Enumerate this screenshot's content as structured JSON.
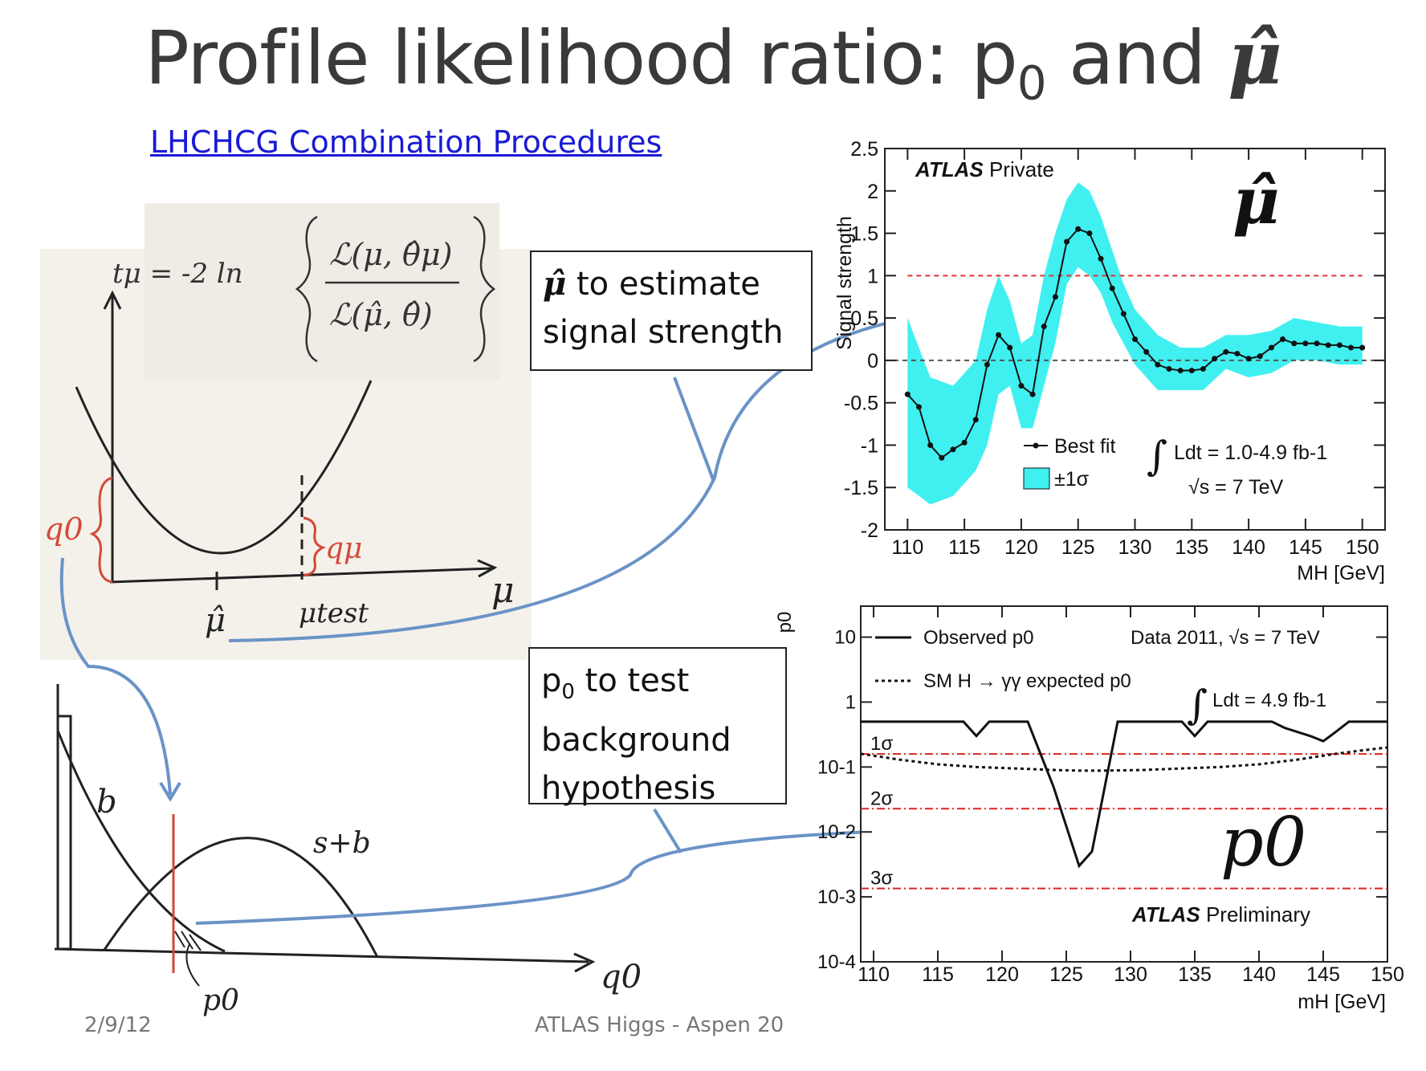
{
  "slide": {
    "title_prefix": "Profile likelihood ratio: p",
    "title_sub": "0",
    "title_mid": " and ",
    "title_muhat": "μ̂",
    "link_text": "LHCHCG Combination Procedures",
    "footer_date": "2/9/12",
    "footer_talk": "ATLAS Higgs - Aspen 20"
  },
  "callouts": {
    "muhat_symbol": "μ̂",
    "muhat_line1": " to estimate",
    "muhat_line2": "signal strength",
    "p0_line1_p": "p",
    "p0_line1_sub": "0",
    "p0_line1_rest": " to test",
    "p0_line2": "background",
    "p0_line3": "hypothesis"
  },
  "sketch": {
    "formula_lhs": "tμ = -2 ln",
    "formula_num": "ℒ(μ, θ̂μ)",
    "formula_den": "ℒ(μ̂, θ̂)",
    "q0_label": "q0",
    "qmu_label": "qμ",
    "mu_axis": "μ",
    "muhat_tick": "μ̂",
    "mutest_tick": "μtest",
    "b_label": "b",
    "sb_label": "s+b",
    "q0_axis": "q0",
    "p0_label": "p0"
  },
  "chart_data": [
    {
      "type": "line",
      "title": "ATLAS Private",
      "big_label": "μ̂",
      "xlabel": "MH [GeV]",
      "ylabel": "Signal strength",
      "xlim": [
        108,
        152
      ],
      "ylim": [
        -2,
        2.5
      ],
      "xticks": [
        "110",
        "115",
        "120",
        "125",
        "130",
        "135",
        "140",
        "145",
        "150"
      ],
      "yticks": [
        "2.5",
        "2",
        "1.5",
        "1",
        "0.5",
        "0",
        "-0.5",
        "-1",
        "-1.5",
        "-2"
      ],
      "legend": [
        "Best fit",
        "±1σ"
      ],
      "annotation_lumi": "Ldt = 1.0-4.9 fb-1",
      "annotation_energy": "√s = 7 TeV",
      "reference_lines": [
        1,
        0
      ],
      "colors": {
        "band": "#40f0f0",
        "line": "#111111",
        "ref1": "#e03030",
        "ref0": "#555555"
      },
      "series": [
        {
          "name": "Best fit",
          "x": [
            110,
            111,
            112,
            113,
            114,
            115,
            116,
            117,
            118,
            119,
            120,
            121,
            122,
            123,
            124,
            125,
            126,
            127,
            128,
            129,
            130,
            131,
            132,
            133,
            134,
            135,
            136,
            137,
            138,
            139,
            140,
            141,
            142,
            143,
            144,
            145,
            146,
            147,
            148,
            149,
            150
          ],
          "y": [
            -0.4,
            -0.55,
            -1.0,
            -1.15,
            -1.05,
            -0.97,
            -0.7,
            -0.05,
            0.3,
            0.15,
            -0.3,
            -0.4,
            0.4,
            0.75,
            1.4,
            1.55,
            1.5,
            1.2,
            0.85,
            0.55,
            0.25,
            0.1,
            -0.05,
            -0.1,
            -0.12,
            -0.12,
            -0.1,
            0.02,
            0.1,
            0.08,
            0.02,
            0.05,
            0.15,
            0.25,
            0.2,
            0.2,
            0.2,
            0.18,
            0.18,
            0.15,
            0.15
          ]
        },
        {
          "name": "±1σ",
          "x": [
            110,
            112,
            114,
            116,
            117,
            118,
            119,
            120,
            121,
            122,
            123,
            124,
            125,
            126,
            127,
            128,
            129,
            130,
            132,
            134,
            136,
            138,
            140,
            142,
            144,
            146,
            148,
            150
          ],
          "upper": [
            0.5,
            -0.2,
            -0.3,
            0.0,
            0.6,
            1.0,
            0.7,
            0.2,
            0.3,
            1.0,
            1.5,
            1.9,
            2.1,
            2.0,
            1.7,
            1.3,
            0.9,
            0.6,
            0.3,
            0.15,
            0.15,
            0.3,
            0.3,
            0.35,
            0.5,
            0.45,
            0.4,
            0.4
          ],
          "lower": [
            -1.5,
            -1.7,
            -1.6,
            -1.3,
            -1.0,
            -0.4,
            -0.3,
            -0.8,
            -0.8,
            -0.3,
            0.2,
            0.9,
            1.1,
            1.0,
            0.8,
            0.45,
            0.2,
            -0.05,
            -0.35,
            -0.35,
            -0.35,
            -0.1,
            -0.2,
            -0.15,
            0.0,
            0.0,
            -0.05,
            -0.05
          ]
        }
      ]
    },
    {
      "type": "line",
      "title": "ATLAS Preliminary",
      "big_label": "p0",
      "xlabel": "mH [GeV]",
      "ylabel": "p0",
      "log_y": true,
      "xlim": [
        109,
        150
      ],
      "ylim": [
        0.0001,
        30
      ],
      "xticks": [
        "110",
        "115",
        "120",
        "125",
        "130",
        "135",
        "140",
        "145",
        "150"
      ],
      "yticks": [
        "10",
        "1",
        "10-1",
        "10-2",
        "10-3",
        "10-4"
      ],
      "legend": [
        "Observed p0",
        "SM H → γγ expected p0"
      ],
      "annotation_data": "Data 2011, √s = 7 TeV",
      "annotation_lumi": "Ldt = 4.9 fb-1",
      "sigma_lines": [
        {
          "label": "1σ",
          "p": 0.159
        },
        {
          "label": "2σ",
          "p": 0.0228
        },
        {
          "label": "3σ",
          "p": 0.00135
        }
      ],
      "colors": {
        "observed": "#111111",
        "expected": "#111111",
        "sigma": "#e02020"
      },
      "series": [
        {
          "name": "Observed p0",
          "x": [
            109,
            117,
            118,
            119,
            121,
            122,
            124,
            126,
            127,
            128,
            129,
            130,
            134,
            135,
            136,
            140,
            141,
            142,
            144,
            145,
            146,
            147,
            150
          ],
          "y": [
            0.5,
            0.5,
            0.3,
            0.5,
            0.5,
            0.5,
            0.05,
            0.003,
            0.005,
            0.05,
            0.5,
            0.5,
            0.5,
            0.3,
            0.5,
            0.5,
            0.5,
            0.4,
            0.3,
            0.25,
            0.35,
            0.5,
            0.5
          ]
        },
        {
          "name": "SM H → γγ expected p0",
          "x": [
            109,
            112,
            115,
            118,
            121,
            124,
            126,
            128,
            131,
            134,
            137,
            140,
            143,
            146,
            148,
            150
          ],
          "y": [
            0.16,
            0.13,
            0.11,
            0.1,
            0.095,
            0.09,
            0.088,
            0.088,
            0.09,
            0.095,
            0.1,
            0.11,
            0.13,
            0.16,
            0.18,
            0.2
          ]
        }
      ]
    }
  ]
}
